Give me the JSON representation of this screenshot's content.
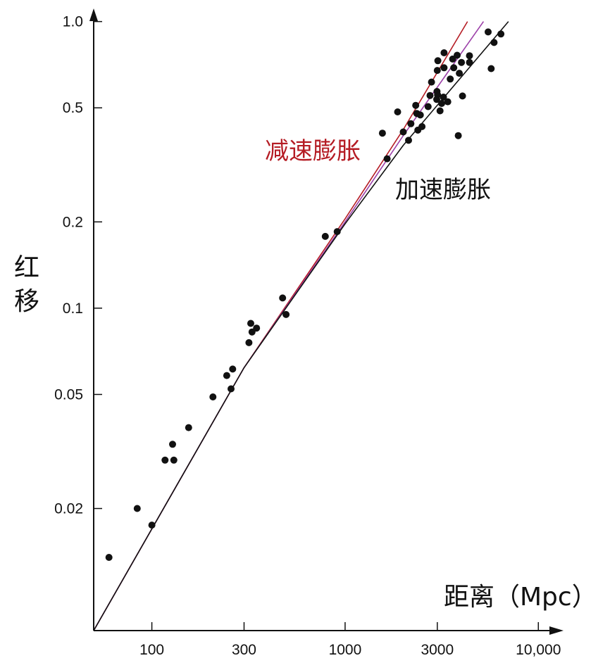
{
  "chart_data": {
    "type": "scatter",
    "x_scale": "log",
    "y_scale": "log",
    "xlabel": "距离（Mpc）",
    "ylabel": "红移",
    "xlim": [
      50,
      12000
    ],
    "ylim": [
      0.0075,
      1.05
    ],
    "x_ticks": [
      {
        "value": 100,
        "label": "100"
      },
      {
        "value": 300,
        "label": "300"
      },
      {
        "value": 1000,
        "label": "1000"
      },
      {
        "value": 3000,
        "label": "3000"
      },
      {
        "value": 10000,
        "label": "10,000"
      }
    ],
    "y_ticks": [
      {
        "value": 0.02,
        "label": "0.02"
      },
      {
        "value": 0.05,
        "label": "0.05"
      },
      {
        "value": 0.1,
        "label": "0.1"
      },
      {
        "value": 0.2,
        "label": "0.2"
      },
      {
        "value": 0.5,
        "label": "0.5"
      },
      {
        "value": 1.0,
        "label": "1.0"
      }
    ],
    "grid": false,
    "series": [
      {
        "kind": "curve",
        "color": "#b51c24",
        "points": [
          [
            50,
            0.0075
          ],
          [
            300,
            0.062
          ],
          [
            1000,
            0.205
          ],
          [
            2000,
            0.42
          ],
          [
            4300,
            1.0
          ]
        ]
      },
      {
        "kind": "curve",
        "color": "#9b3fa8",
        "points": [
          [
            50,
            0.0075
          ],
          [
            300,
            0.062
          ],
          [
            1000,
            0.2
          ],
          [
            2000,
            0.4
          ],
          [
            5200,
            1.0
          ]
        ]
      },
      {
        "kind": "curve",
        "color": "#111111",
        "points": [
          [
            50,
            0.0075
          ],
          [
            300,
            0.062
          ],
          [
            1000,
            0.197
          ],
          [
            2000,
            0.37
          ],
          [
            7000,
            1.0
          ]
        ]
      },
      {
        "kind": "points",
        "color": "#111111",
        "points": [
          [
            60,
            0.0135
          ],
          [
            84,
            0.02
          ],
          [
            100,
            0.0175
          ],
          [
            117,
            0.0295
          ],
          [
            128,
            0.0335
          ],
          [
            130,
            0.0295
          ],
          [
            155,
            0.0383
          ],
          [
            207,
            0.049
          ],
          [
            244,
            0.0582
          ],
          [
            257,
            0.0523
          ],
          [
            262,
            0.0613
          ],
          [
            318,
            0.0758
          ],
          [
            325,
            0.0885
          ],
          [
            330,
            0.0826
          ],
          [
            348,
            0.0852
          ],
          [
            475,
            0.1085
          ],
          [
            495,
            0.095
          ],
          [
            790,
            0.178
          ],
          [
            910,
            0.185
          ],
          [
            1560,
            0.408
          ],
          [
            1650,
            0.332
          ],
          [
            1870,
            0.484
          ],
          [
            2000,
            0.412
          ],
          [
            2130,
            0.385
          ],
          [
            2190,
            0.44
          ],
          [
            2320,
            0.51
          ],
          [
            2350,
            0.478
          ],
          [
            2380,
            0.418
          ],
          [
            2450,
            0.472
          ],
          [
            2500,
            0.43
          ],
          [
            2690,
            0.505
          ],
          [
            2750,
            0.552
          ],
          [
            2800,
            0.615
          ],
          [
            2980,
            0.535
          ],
          [
            2990,
            0.57
          ],
          [
            3000,
            0.675
          ],
          [
            3010,
            0.555
          ],
          [
            3020,
            0.73
          ],
          [
            3100,
            0.488
          ],
          [
            3160,
            0.518
          ],
          [
            3230,
            0.545
          ],
          [
            3250,
            0.69
          ],
          [
            3250,
            0.778
          ],
          [
            3400,
            0.525
          ],
          [
            3500,
            0.63
          ],
          [
            3600,
            0.74
          ],
          [
            3650,
            0.69
          ],
          [
            3800,
            0.763
          ],
          [
            3900,
            0.66
          ],
          [
            3850,
            0.4
          ],
          [
            4000,
            0.72
          ],
          [
            4050,
            0.55
          ],
          [
            4400,
            0.76
          ],
          [
            4400,
            0.72
          ],
          [
            5500,
            0.92
          ],
          [
            5700,
            0.685
          ],
          [
            5900,
            0.845
          ],
          [
            6400,
            0.905
          ]
        ]
      }
    ],
    "annotations": [
      {
        "text": "减速膨胀",
        "color": "#b51c24"
      },
      {
        "text": "加速膨胀",
        "color": "#111111"
      }
    ]
  }
}
